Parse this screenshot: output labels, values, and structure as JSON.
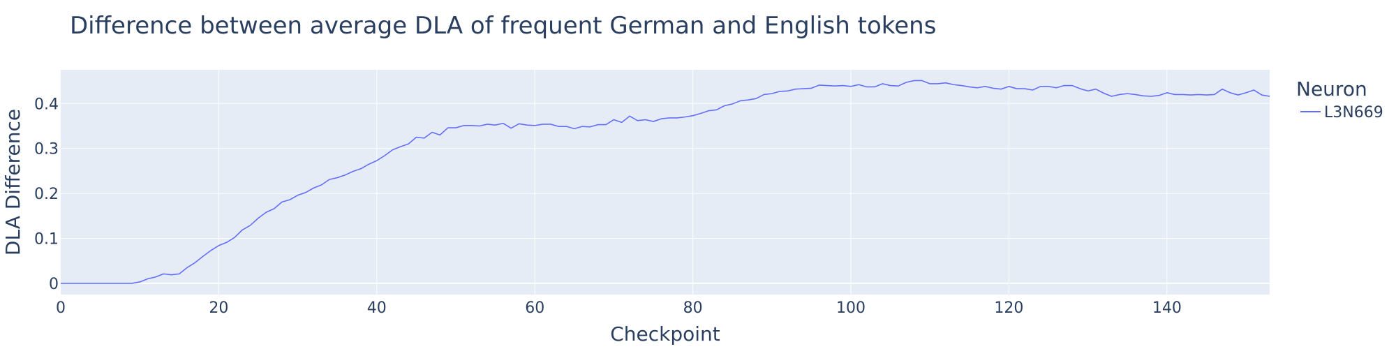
{
  "chart_data": {
    "type": "line",
    "title": "Difference between average DLA of frequent German and English tokens",
    "xlabel": "Checkpoint",
    "ylabel": "DLA Difference",
    "xlim": [
      0,
      153
    ],
    "ylim": [
      -0.025,
      0.475
    ],
    "x_ticks": [
      0,
      20,
      40,
      60,
      80,
      100,
      120,
      140
    ],
    "y_ticks": [
      0,
      0.1,
      0.2,
      0.3,
      0.4
    ],
    "y_tick_labels": [
      "0",
      "0.1",
      "0.2",
      "0.3",
      "0.4"
    ],
    "grid": true,
    "legend": {
      "title": "Neuron",
      "position": "right"
    },
    "series": [
      {
        "name": "L3N669",
        "color": "#636efa",
        "x": [
          0,
          1,
          2,
          3,
          4,
          5,
          6,
          7,
          8,
          9,
          10,
          11,
          12,
          13,
          14,
          15,
          16,
          17,
          18,
          19,
          20,
          21,
          22,
          23,
          24,
          25,
          26,
          27,
          28,
          29,
          30,
          31,
          32,
          33,
          34,
          35,
          36,
          37,
          38,
          39,
          40,
          41,
          42,
          43,
          44,
          45,
          46,
          47,
          48,
          49,
          50,
          51,
          52,
          53,
          54,
          55,
          56,
          57,
          58,
          59,
          60,
          61,
          62,
          63,
          64,
          65,
          66,
          67,
          68,
          69,
          70,
          71,
          72,
          73,
          74,
          75,
          76,
          77,
          78,
          79,
          80,
          81,
          82,
          83,
          84,
          85,
          86,
          87,
          88,
          89,
          90,
          91,
          92,
          93,
          94,
          95,
          96,
          97,
          98,
          99,
          100,
          101,
          102,
          103,
          104,
          105,
          106,
          107,
          108,
          109,
          110,
          111,
          112,
          113,
          114,
          115,
          116,
          117,
          118,
          119,
          120,
          121,
          122,
          123,
          124,
          125,
          126,
          127,
          128,
          129,
          130,
          131,
          132,
          133,
          134,
          135,
          136,
          137,
          138,
          139,
          140,
          141,
          142,
          143,
          144,
          145,
          146,
          147,
          148,
          149,
          150,
          151,
          152,
          153
        ],
        "values": [
          0,
          0,
          0,
          0,
          0,
          0,
          0,
          0,
          0,
          0,
          0.003,
          0.01,
          0.014,
          0.021,
          0.019,
          0.021,
          0.035,
          0.046,
          0.06,
          0.073,
          0.084,
          0.091,
          0.102,
          0.119,
          0.129,
          0.145,
          0.158,
          0.166,
          0.181,
          0.186,
          0.196,
          0.202,
          0.212,
          0.219,
          0.231,
          0.235,
          0.241,
          0.249,
          0.255,
          0.265,
          0.273,
          0.284,
          0.297,
          0.304,
          0.31,
          0.325,
          0.323,
          0.336,
          0.33,
          0.346,
          0.346,
          0.351,
          0.351,
          0.35,
          0.354,
          0.352,
          0.356,
          0.345,
          0.355,
          0.352,
          0.351,
          0.354,
          0.354,
          0.349,
          0.349,
          0.344,
          0.349,
          0.348,
          0.353,
          0.353,
          0.364,
          0.358,
          0.372,
          0.362,
          0.364,
          0.36,
          0.366,
          0.368,
          0.368,
          0.37,
          0.373,
          0.378,
          0.384,
          0.386,
          0.395,
          0.399,
          0.406,
          0.408,
          0.411,
          0.42,
          0.422,
          0.427,
          0.428,
          0.432,
          0.433,
          0.434,
          0.441,
          0.44,
          0.439,
          0.44,
          0.438,
          0.442,
          0.437,
          0.437,
          0.444,
          0.44,
          0.439,
          0.447,
          0.451,
          0.451,
          0.444,
          0.444,
          0.446,
          0.442,
          0.44,
          0.437,
          0.435,
          0.438,
          0.434,
          0.432,
          0.438,
          0.433,
          0.433,
          0.43,
          0.438,
          0.438,
          0.435,
          0.44,
          0.44,
          0.433,
          0.428,
          0.432,
          0.423,
          0.416,
          0.42,
          0.422,
          0.42,
          0.417,
          0.416,
          0.418,
          0.424,
          0.42,
          0.42,
          0.419,
          0.42,
          0.419,
          0.42,
          0.432,
          0.424,
          0.419,
          0.424,
          0.43,
          0.419,
          0.416
        ]
      }
    ]
  }
}
